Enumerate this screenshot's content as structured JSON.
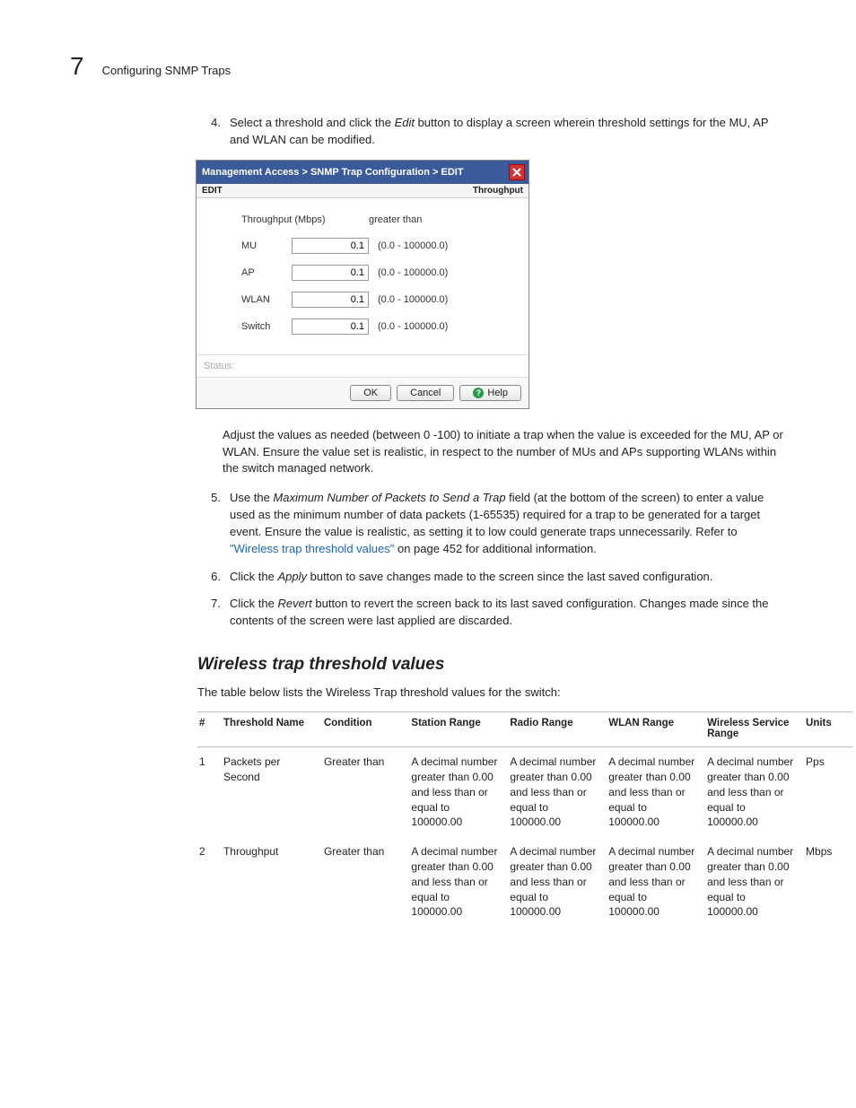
{
  "chapter_number": "7",
  "chapter_title": "Configuring SNMP Traps",
  "step4": {
    "num": "4.",
    "pre": "Select a threshold and click the ",
    "edit": "Edit",
    "post": " button to display a screen wherein threshold settings for the MU, AP and WLAN can be modified."
  },
  "dialog": {
    "breadcrumb": "Management Access > SNMP Trap Configuration > EDIT",
    "sub_left": "EDIT",
    "sub_right": "Throughput",
    "col1": "Throughput (Mbps)",
    "col2": "greater than",
    "rows": [
      {
        "label": "MU",
        "value": "0.1",
        "range": "(0.0 - 100000.0)"
      },
      {
        "label": "AP",
        "value": "0.1",
        "range": "(0.0 - 100000.0)"
      },
      {
        "label": "WLAN",
        "value": "0.1",
        "range": "(0.0 - 100000.0)"
      },
      {
        "label": "Switch",
        "value": "0.1",
        "range": "(0.0 - 100000.0)"
      }
    ],
    "status_label": "Status:",
    "ok": "OK",
    "cancel": "Cancel",
    "help": "Help"
  },
  "adjust_para": "Adjust the values as needed (between 0 -100) to initiate a trap when the value is exceeded for the MU, AP or WLAN. Ensure the value set is realistic, in respect to the number of MUs and APs supporting WLANs within the switch managed network.",
  "step5": {
    "num": "5.",
    "pre": "Use the ",
    "field": "Maximum Number of Packets to Send a Trap",
    "mid": " field (at the bottom of the screen) to enter a value used as the minimum number of data packets (1-65535) required for a trap to be generated for a target event. Ensure the value is realistic, as setting it to low could generate traps unnecessarily. Refer to ",
    "link": "\"Wireless trap threshold values\"",
    "post": " on page 452 for additional information."
  },
  "step6": {
    "num": "6.",
    "pre": "Click the ",
    "btn": "Apply",
    "post": " button to save changes made to the screen since the last saved configuration."
  },
  "step7": {
    "num": "7.",
    "pre": "Click the ",
    "btn": "Revert",
    "post": " button to revert the screen back to its last saved configuration. Changes made since the contents of the screen were last applied are discarded."
  },
  "section_heading": "Wireless trap threshold values",
  "table_intro": "The table below lists the Wireless Trap threshold values for the switch:",
  "table": {
    "headers": [
      "#",
      "Threshold Name",
      "Condition",
      "Station Range",
      "Radio Range",
      "WLAN Range",
      "Wireless Service Range",
      "Units"
    ],
    "range_text": "A decimal number greater than 0.00 and less than or equal to 100000.00",
    "rows": [
      {
        "n": "1",
        "name": "Packets per Second",
        "cond": "Greater than",
        "units": "Pps"
      },
      {
        "n": "2",
        "name": "Throughput",
        "cond": "Greater than",
        "units": "Mbps"
      }
    ]
  }
}
